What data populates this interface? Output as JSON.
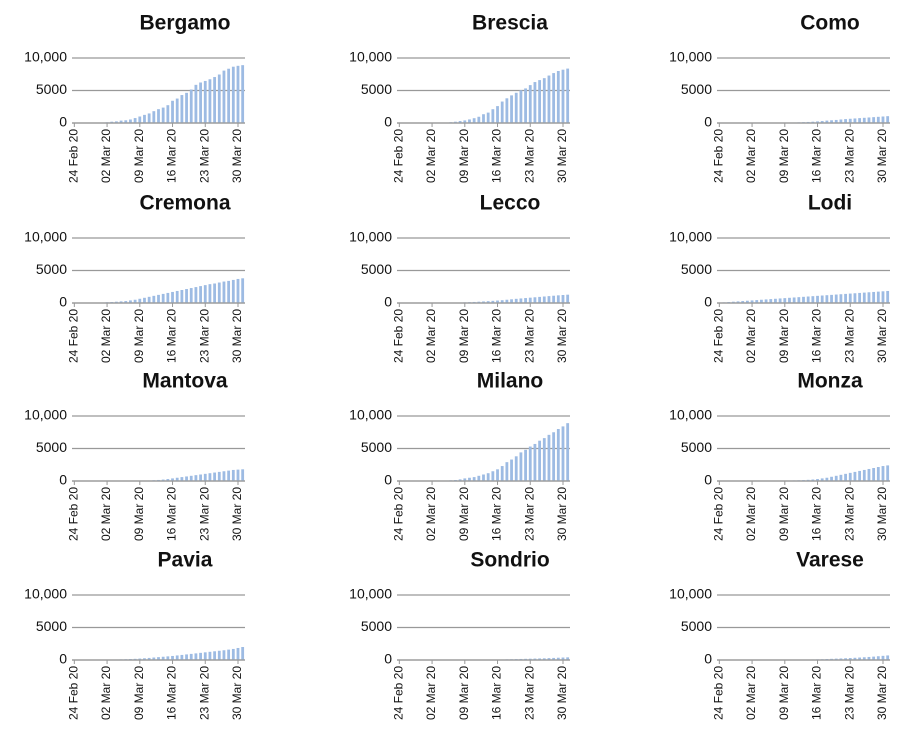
{
  "chart_data": [
    {
      "type": "bar",
      "title": "Bergamo",
      "color": "#9dbbe3",
      "ylim": [
        0,
        10000
      ],
      "yticks": [
        0,
        5000,
        {
          "value": 10000,
          "label": "10,000"
        }
      ],
      "grid": true,
      "categories": [
        "24 Feb 20",
        null,
        null,
        null,
        null,
        null,
        null,
        "02 Mar 20",
        null,
        null,
        null,
        null,
        null,
        null,
        "09 Mar 20",
        null,
        null,
        null,
        null,
        null,
        null,
        "16 Mar 20",
        null,
        null,
        null,
        null,
        null,
        null,
        "23 Mar 20",
        null,
        null,
        null,
        null,
        null,
        null,
        "30 Mar 20",
        null
      ],
      "values": [
        0,
        0,
        0,
        0,
        0,
        20,
        70,
        110,
        200,
        250,
        370,
        420,
        540,
        760,
        1000,
        1250,
        1470,
        1820,
        2130,
        2370,
        2740,
        3420,
        3760,
        4300,
        4640,
        5150,
        5870,
        6230,
        6470,
        6730,
        7070,
        7460,
        8060,
        8350,
        8660,
        8800,
        8900
      ]
    },
    {
      "type": "bar",
      "title": "Brescia",
      "color": "#9dbbe3",
      "ylim": [
        0,
        10000
      ],
      "yticks": [
        0,
        5000,
        {
          "value": 10000,
          "label": "10,000"
        }
      ],
      "grid": true,
      "categories": [
        "24 Feb 20",
        null,
        null,
        null,
        null,
        null,
        null,
        "02 Mar 20",
        null,
        null,
        null,
        null,
        null,
        null,
        "09 Mar 20",
        null,
        null,
        null,
        null,
        null,
        null,
        "16 Mar 20",
        null,
        null,
        null,
        null,
        null,
        null,
        "23 Mar 20",
        null,
        null,
        null,
        null,
        null,
        null,
        "30 Mar 20",
        null
      ],
      "values": [
        0,
        0,
        0,
        0,
        0,
        0,
        0,
        10,
        20,
        40,
        70,
        120,
        200,
        300,
        400,
        550,
        740,
        960,
        1350,
        1600,
        2120,
        2600,
        3300,
        3800,
        4250,
        4650,
        5030,
        5320,
        5830,
        6300,
        6600,
        6900,
        7300,
        7680,
        8000,
        8200,
        8370
      ]
    },
    {
      "type": "bar",
      "title": "Como",
      "color": "#9dbbe3",
      "ylim": [
        0,
        10000
      ],
      "yticks": [
        0,
        5000,
        {
          "value": 10000,
          "label": "10,000"
        }
      ],
      "grid": true,
      "categories": [
        "24 Feb 20",
        null,
        null,
        null,
        null,
        null,
        null,
        "02 Mar 20",
        null,
        null,
        null,
        null,
        null,
        null,
        "09 Mar 20",
        null,
        null,
        null,
        null,
        null,
        null,
        "16 Mar 20",
        null,
        null,
        null,
        null,
        null,
        null,
        "23 Mar 20",
        null,
        null,
        null,
        null,
        null,
        null,
        "30 Mar 20",
        null
      ],
      "values": [
        0,
        0,
        0,
        0,
        0,
        0,
        0,
        0,
        2,
        5,
        10,
        15,
        20,
        30,
        40,
        60,
        80,
        100,
        130,
        160,
        200,
        250,
        300,
        370,
        420,
        470,
        540,
        600,
        650,
        700,
        750,
        800,
        850,
        900,
        950,
        1000,
        1050
      ]
    },
    {
      "type": "bar",
      "title": "Cremona",
      "color": "#9dbbe3",
      "ylim": [
        0,
        10000
      ],
      "yticks": [
        0,
        5000,
        {
          "value": 10000,
          "label": "10,000"
        }
      ],
      "grid": true,
      "categories": [
        "24 Feb 20",
        null,
        null,
        null,
        null,
        null,
        null,
        "02 Mar 20",
        null,
        null,
        null,
        null,
        null,
        null,
        "09 Mar 20",
        null,
        null,
        null,
        null,
        null,
        null,
        "16 Mar 20",
        null,
        null,
        null,
        null,
        null,
        null,
        "23 Mar 20",
        null,
        null,
        null,
        null,
        null,
        null,
        "30 Mar 20",
        null
      ],
      "values": [
        0,
        0,
        10,
        20,
        40,
        60,
        80,
        120,
        150,
        200,
        250,
        300,
        400,
        500,
        650,
        800,
        950,
        1100,
        1250,
        1400,
        1550,
        1700,
        1850,
        2000,
        2150,
        2300,
        2450,
        2600,
        2750,
        2900,
        3000,
        3150,
        3300,
        3400,
        3550,
        3700,
        3800
      ]
    },
    {
      "type": "bar",
      "title": "Lecco",
      "color": "#9dbbe3",
      "ylim": [
        0,
        10000
      ],
      "yticks": [
        0,
        5000,
        {
          "value": 10000,
          "label": "10,000"
        }
      ],
      "grid": true,
      "categories": [
        "24 Feb 20",
        null,
        null,
        null,
        null,
        null,
        null,
        "02 Mar 20",
        null,
        null,
        null,
        null,
        null,
        null,
        "09 Mar 20",
        null,
        null,
        null,
        null,
        null,
        null,
        "16 Mar 20",
        null,
        null,
        null,
        null,
        null,
        null,
        "23 Mar 20",
        null,
        null,
        null,
        null,
        null,
        null,
        "30 Mar 20",
        null
      ],
      "values": [
        0,
        0,
        0,
        0,
        0,
        0,
        0,
        10,
        20,
        30,
        40,
        50,
        60,
        80,
        100,
        130,
        160,
        200,
        240,
        280,
        330,
        380,
        430,
        500,
        570,
        640,
        700,
        760,
        820,
        880,
        940,
        1000,
        1060,
        1120,
        1180,
        1230,
        1280
      ]
    },
    {
      "type": "bar",
      "title": "Lodi",
      "color": "#9dbbe3",
      "ylim": [
        0,
        10000
      ],
      "yticks": [
        0,
        5000,
        {
          "value": 10000,
          "label": "10,000"
        }
      ],
      "grid": true,
      "categories": [
        "24 Feb 20",
        null,
        null,
        null,
        null,
        null,
        null,
        "02 Mar 20",
        null,
        null,
        null,
        null,
        null,
        null,
        "09 Mar 20",
        null,
        null,
        null,
        null,
        null,
        null,
        "16 Mar 20",
        null,
        null,
        null,
        null,
        null,
        null,
        "23 Mar 20",
        null,
        null,
        null,
        null,
        null,
        null,
        "30 Mar 20",
        null
      ],
      "values": [
        50,
        100,
        150,
        200,
        250,
        300,
        350,
        400,
        450,
        500,
        550,
        600,
        650,
        700,
        750,
        800,
        850,
        900,
        950,
        1000,
        1050,
        1100,
        1150,
        1200,
        1250,
        1300,
        1350,
        1400,
        1450,
        1500,
        1550,
        1600,
        1650,
        1700,
        1750,
        1800,
        1850
      ]
    },
    {
      "type": "bar",
      "title": "Mantova",
      "color": "#9dbbe3",
      "ylim": [
        0,
        10000
      ],
      "yticks": [
        0,
        5000,
        {
          "value": 10000,
          "label": "10,000"
        }
      ],
      "grid": true,
      "categories": [
        "24 Feb 20",
        null,
        null,
        null,
        null,
        null,
        null,
        "02 Mar 20",
        null,
        null,
        null,
        null,
        null,
        null,
        "09 Mar 20",
        null,
        null,
        null,
        null,
        null,
        null,
        "16 Mar 20",
        null,
        null,
        null,
        null,
        null,
        null,
        "23 Mar 20",
        null,
        null,
        null,
        null,
        null,
        null,
        "30 Mar 20",
        null
      ],
      "values": [
        0,
        0,
        0,
        0,
        0,
        0,
        0,
        0,
        0,
        2,
        5,
        10,
        20,
        30,
        40,
        60,
        80,
        120,
        160,
        220,
        300,
        400,
        500,
        600,
        700,
        800,
        900,
        1000,
        1100,
        1200,
        1300,
        1400,
        1500,
        1600,
        1700,
        1750,
        1800
      ]
    },
    {
      "type": "bar",
      "title": "Milano",
      "color": "#9dbbe3",
      "ylim": [
        0,
        10000
      ],
      "yticks": [
        0,
        5000,
        {
          "value": 10000,
          "label": "10,000"
        }
      ],
      "grid": true,
      "categories": [
        "24 Feb 20",
        null,
        null,
        null,
        null,
        null,
        null,
        "02 Mar 20",
        null,
        null,
        null,
        null,
        null,
        null,
        "09 Mar 20",
        null,
        null,
        null,
        null,
        null,
        null,
        "16 Mar 20",
        null,
        null,
        null,
        null,
        null,
        null,
        "23 Mar 20",
        null,
        null,
        null,
        null,
        null,
        null,
        "30 Mar 20",
        null
      ],
      "values": [
        0,
        0,
        0,
        0,
        0,
        0,
        10,
        20,
        40,
        60,
        80,
        110,
        150,
        250,
        400,
        500,
        600,
        800,
        1000,
        1200,
        1500,
        1800,
        2300,
        2900,
        3300,
        3800,
        4400,
        4800,
        5300,
        5700,
        6200,
        6600,
        7100,
        7500,
        8000,
        8400,
        8900
      ]
    },
    {
      "type": "bar",
      "title": "Monza",
      "color": "#9dbbe3",
      "ylim": [
        0,
        10000
      ],
      "yticks": [
        0,
        5000,
        {
          "value": 10000,
          "label": "10,000"
        }
      ],
      "grid": true,
      "categories": [
        "24 Feb 20",
        null,
        null,
        null,
        null,
        null,
        null,
        "02 Mar 20",
        null,
        null,
        null,
        null,
        null,
        null,
        "09 Mar 20",
        null,
        null,
        null,
        null,
        null,
        null,
        "16 Mar 20",
        null,
        null,
        null,
        null,
        null,
        null,
        "23 Mar 20",
        null,
        null,
        null,
        null,
        null,
        null,
        "30 Mar 20",
        null
      ],
      "values": [
        0,
        0,
        0,
        0,
        0,
        0,
        0,
        0,
        5,
        10,
        20,
        30,
        40,
        50,
        60,
        70,
        90,
        110,
        140,
        180,
        230,
        300,
        400,
        500,
        650,
        800,
        950,
        1100,
        1250,
        1400,
        1550,
        1700,
        1850,
        2000,
        2150,
        2300,
        2400
      ]
    },
    {
      "type": "bar",
      "title": "Pavia",
      "color": "#9dbbe3",
      "ylim": [
        0,
        10000
      ],
      "yticks": [
        0,
        5000,
        {
          "value": 10000,
          "label": "10,000"
        }
      ],
      "grid": true,
      "categories": [
        "24 Feb 20",
        null,
        null,
        null,
        null,
        null,
        null,
        "02 Mar 20",
        null,
        null,
        null,
        null,
        null,
        null,
        "09 Mar 20",
        null,
        null,
        null,
        null,
        null,
        null,
        "16 Mar 20",
        null,
        null,
        null,
        null,
        null,
        null,
        "23 Mar 20",
        null,
        null,
        null,
        null,
        null,
        null,
        "30 Mar 20",
        null
      ],
      "values": [
        0,
        0,
        10,
        20,
        30,
        40,
        50,
        60,
        70,
        80,
        100,
        120,
        150,
        180,
        220,
        270,
        320,
        380,
        440,
        500,
        560,
        620,
        700,
        780,
        860,
        940,
        1020,
        1100,
        1180,
        1260,
        1340,
        1420,
        1500,
        1600,
        1700,
        1850,
        2000
      ]
    },
    {
      "type": "bar",
      "title": "Sondrio",
      "color": "#9dbbe3",
      "ylim": [
        0,
        10000
      ],
      "yticks": [
        0,
        5000,
        {
          "value": 10000,
          "label": "10,000"
        }
      ],
      "grid": true,
      "categories": [
        "24 Feb 20",
        null,
        null,
        null,
        null,
        null,
        null,
        "02 Mar 20",
        null,
        null,
        null,
        null,
        null,
        null,
        "09 Mar 20",
        null,
        null,
        null,
        null,
        null,
        null,
        "16 Mar 20",
        null,
        null,
        null,
        null,
        null,
        null,
        "23 Mar 20",
        null,
        null,
        null,
        null,
        null,
        null,
        "30 Mar 20",
        null
      ],
      "values": [
        0,
        0,
        0,
        0,
        0,
        0,
        0,
        0,
        0,
        0,
        0,
        2,
        5,
        8,
        10,
        15,
        20,
        30,
        40,
        50,
        60,
        70,
        80,
        100,
        120,
        140,
        160,
        180,
        200,
        220,
        240,
        260,
        290,
        320,
        350,
        380,
        410
      ]
    },
    {
      "type": "bar",
      "title": "Varese",
      "color": "#9dbbe3",
      "ylim": [
        0,
        10000
      ],
      "yticks": [
        0,
        5000,
        {
          "value": 10000,
          "label": "10,000"
        }
      ],
      "grid": true,
      "categories": [
        "24 Feb 20",
        null,
        null,
        null,
        null,
        null,
        null,
        "02 Mar 20",
        null,
        null,
        null,
        null,
        null,
        null,
        "09 Mar 20",
        null,
        null,
        null,
        null,
        null,
        null,
        "16 Mar 20",
        null,
        null,
        null,
        null,
        null,
        null,
        "23 Mar 20",
        null,
        null,
        null,
        null,
        null,
        null,
        "30 Mar 20",
        null
      ],
      "values": [
        0,
        0,
        0,
        0,
        0,
        0,
        0,
        0,
        0,
        2,
        5,
        10,
        15,
        20,
        25,
        30,
        40,
        50,
        60,
        70,
        85,
        100,
        120,
        150,
        180,
        210,
        240,
        270,
        300,
        340,
        380,
        420,
        470,
        520,
        580,
        640,
        700
      ]
    }
  ]
}
